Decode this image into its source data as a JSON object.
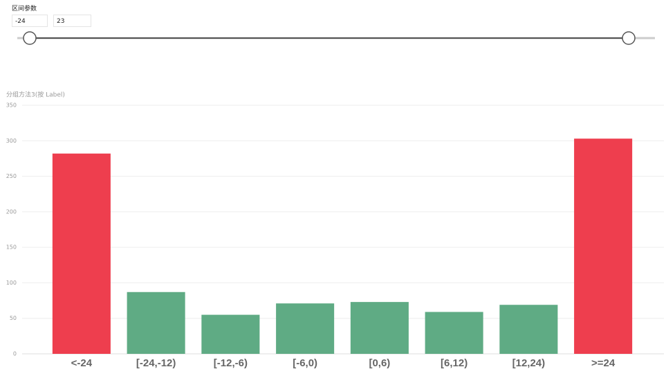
{
  "slicer": {
    "title": "区间参数",
    "min_input": "-24",
    "max_input": "23"
  },
  "chart_data": {
    "type": "bar",
    "title": "分组方法3(按 Label)",
    "categories": [
      "<-24",
      "[-24,-12)",
      "[-12,-6)",
      "[-6,0)",
      "[0,6)",
      "[6,12)",
      "[12,24)",
      ">=24"
    ],
    "values": [
      282,
      87,
      55,
      71,
      73,
      59,
      69,
      303
    ],
    "colors": [
      "#ee3e4e",
      "#5fab84",
      "#5fab84",
      "#5fab84",
      "#5fab84",
      "#5fab84",
      "#5fab84",
      "#ee3e4e"
    ],
    "ylim": [
      0,
      350
    ],
    "yticks": [
      0,
      50,
      100,
      150,
      200,
      250,
      300,
      350
    ],
    "grid": true
  }
}
